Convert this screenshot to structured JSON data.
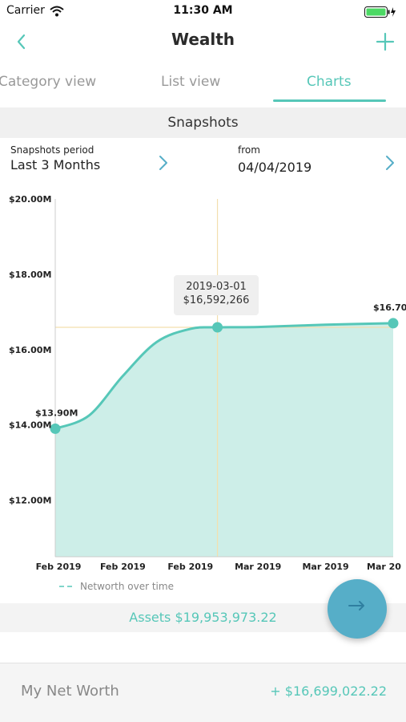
{
  "status_bar": {
    "carrier": "Carrier",
    "time": "11:30 AM"
  },
  "nav": {
    "title": "Wealth",
    "back_icon": "chevron-left-icon",
    "add_icon": "plus-icon"
  },
  "tabs": [
    {
      "label": "Category view",
      "active": false
    },
    {
      "label": "List view",
      "active": false
    },
    {
      "label": "Charts",
      "active": true
    }
  ],
  "section": {
    "title": "Snapshots"
  },
  "period": {
    "label": "Snapshots period",
    "value": "Last 3 Months",
    "from_label": "from",
    "from_value": "04/04/2019"
  },
  "chart_data": {
    "type": "area",
    "y_ticks": [
      "$20.00M",
      "$18.00M",
      "$16.00M",
      "$14.00M",
      "$12.00M"
    ],
    "y_tick_values": [
      20,
      18,
      16,
      14,
      12
    ],
    "ylim": [
      10.5,
      20
    ],
    "x_ticks": [
      "Feb 2019",
      "Feb 2019",
      "Feb 2019",
      "Mar 2019",
      "Mar 2019",
      "Mar 20"
    ],
    "x_tick_positions": [
      0,
      0.2,
      0.4,
      0.6,
      0.8,
      1.0
    ],
    "series": [
      {
        "name": "Networth over time",
        "x": [
          0,
          0.1,
          0.2,
          0.3,
          0.4,
          0.48,
          0.6,
          0.8,
          1.0
        ],
        "y": [
          13.9,
          14.25,
          15.3,
          16.2,
          16.55,
          16.592,
          16.6,
          16.66,
          16.7
        ]
      }
    ],
    "start_label": "$13.90M",
    "end_label": "$16.70",
    "tooltip": {
      "date": "2019-03-01",
      "value": "$16,592,266",
      "x": 0.48,
      "y": 16.592
    },
    "legend": "Networth over time",
    "colors": {
      "line": "#56c7b8",
      "fill": "#cdeee8",
      "crosshair": "#f3dfae",
      "axis": "#cccccc"
    }
  },
  "assets": {
    "label": "Assets $19,953,973.22"
  },
  "fab": {
    "icon": "swap-arrows-icon"
  },
  "networth": {
    "label": "My Net Worth",
    "value": "+ $16,699,022.22"
  }
}
